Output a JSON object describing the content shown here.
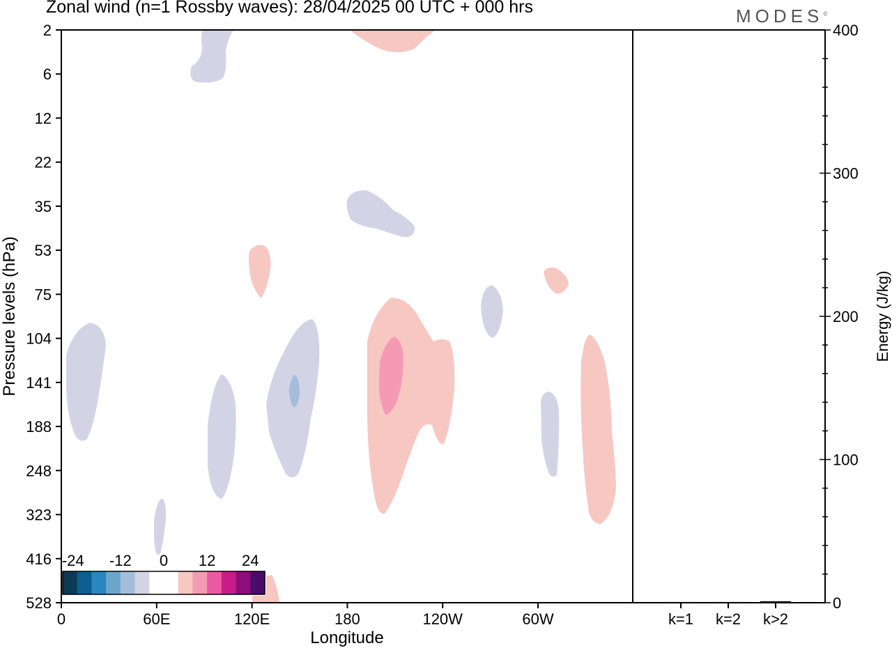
{
  "header": {
    "title": "Zonal wind (n=1 Rossby waves):  28/04/2025  00 UTC  + 000 hrs",
    "logo": "MODES",
    "logo_mark": "©"
  },
  "chart_data": [
    {
      "type": "heatmap",
      "variable": "Zonal wind",
      "xlabel": "Longitude",
      "ylabel": "Pressure levels (hPa)",
      "x_ticks": [
        "0",
        "60E",
        "120E",
        "180",
        "120W",
        "60W"
      ],
      "x_tick_values": [
        0,
        60,
        120,
        180,
        240,
        300
      ],
      "xlim": [
        0,
        360
      ],
      "y_ticks": [
        2,
        6,
        12,
        22,
        35,
        53,
        75,
        104,
        141,
        188,
        248,
        323,
        416,
        528
      ],
      "y_scale": "model levels, inverted (2 hPa at top, 528 hPa at bottom)",
      "colorbar": {
        "tick_labels": [
          "-24",
          "-12",
          "0",
          "12",
          "24"
        ],
        "tick_values": [
          -24,
          -12,
          0,
          12,
          24
        ],
        "colors": [
          "#0b3a54",
          "#0c5f8f",
          "#2b86bf",
          "#6aa6cc",
          "#a5bddb",
          "#d2d4e6",
          "#ffffff",
          "#ffffff",
          "#f7c7c2",
          "#f59ab4",
          "#ea5aa0",
          "#c81c89",
          "#8e0d7a",
          "#4b0a6b"
        ]
      },
      "contour_regions": [
        {
          "sign": "negative",
          "level": -3,
          "lon_range": [
            84,
            104
          ],
          "pressure_range": [
            2,
            8
          ],
          "color": "#d2d4e6"
        },
        {
          "sign": "positive",
          "level": 3,
          "lon_range": [
            185,
            235
          ],
          "pressure_range": [
            2,
            3
          ],
          "color": "#f7c7c2"
        },
        {
          "sign": "negative",
          "level": -3,
          "lon_range": [
            180,
            224
          ],
          "pressure_range": [
            28,
            51
          ],
          "color": "#d2d4e6"
        },
        {
          "sign": "positive",
          "level": 3,
          "lon_range": [
            118,
            132
          ],
          "pressure_range": [
            50,
            75
          ],
          "color": "#f7c7c2"
        },
        {
          "sign": "positive",
          "level": 3,
          "lon_range": [
            305,
            321
          ],
          "pressure_range": [
            60,
            78
          ],
          "color": "#f7c7c2"
        },
        {
          "sign": "negative",
          "level": -3,
          "lon_range": [
            265,
            279
          ],
          "pressure_range": [
            75,
            103
          ],
          "color": "#d2d4e6"
        },
        {
          "sign": "negative",
          "level": -3,
          "lon_range": [
            2,
            28
          ],
          "pressure_range": [
            101,
            208
          ],
          "color": "#d2d4e6"
        },
        {
          "sign": "negative",
          "level": -3,
          "lon_range": [
            92,
            110
          ],
          "pressure_range": [
            136,
            343
          ],
          "color": "#d2d4e6"
        },
        {
          "sign": "negative",
          "level": -3,
          "lon_range": [
            130,
            162
          ],
          "pressure_range": [
            103,
            255
          ],
          "color": "#d2d4e6"
        },
        {
          "sign": "negative",
          "level": -9,
          "lon_range": [
            144,
            150
          ],
          "pressure_range": [
            136,
            165
          ],
          "color": "#a5bddb"
        },
        {
          "sign": "positive",
          "level": 3,
          "lon_range": [
            193,
            258
          ],
          "pressure_range": [
            76,
            326
          ],
          "color": "#f7c7c2"
        },
        {
          "sign": "positive",
          "level": 9,
          "lon_range": [
            201,
            215
          ],
          "pressure_range": [
            106,
            182
          ],
          "color": "#f59ab4"
        },
        {
          "sign": "negative",
          "level": -3,
          "lon_range": [
            302,
            314
          ],
          "pressure_range": [
            161,
            251
          ],
          "color": "#d2d4e6"
        },
        {
          "sign": "positive",
          "level": 3,
          "lon_range": [
            327,
            349
          ],
          "pressure_range": [
            104,
            339
          ],
          "color": "#f7c7c2"
        },
        {
          "sign": "negative",
          "level": -3,
          "lon_range": [
            58,
            66
          ],
          "pressure_range": [
            341,
            402
          ],
          "color": "#d2d4e6"
        },
        {
          "sign": "positive",
          "level": 3,
          "lon_range": [
            124,
            138
          ],
          "pressure_range": [
            458,
            528
          ],
          "color": "#f7c7c2"
        }
      ]
    },
    {
      "type": "bar",
      "categories": [
        "k=1",
        "k=2",
        "k>2"
      ],
      "values": [
        0.5,
        0.5,
        1
      ],
      "ylabel": "Energy (J/kg)",
      "ylim": [
        0,
        400
      ],
      "y_ticks": [
        0,
        100,
        200,
        300,
        400
      ]
    }
  ]
}
